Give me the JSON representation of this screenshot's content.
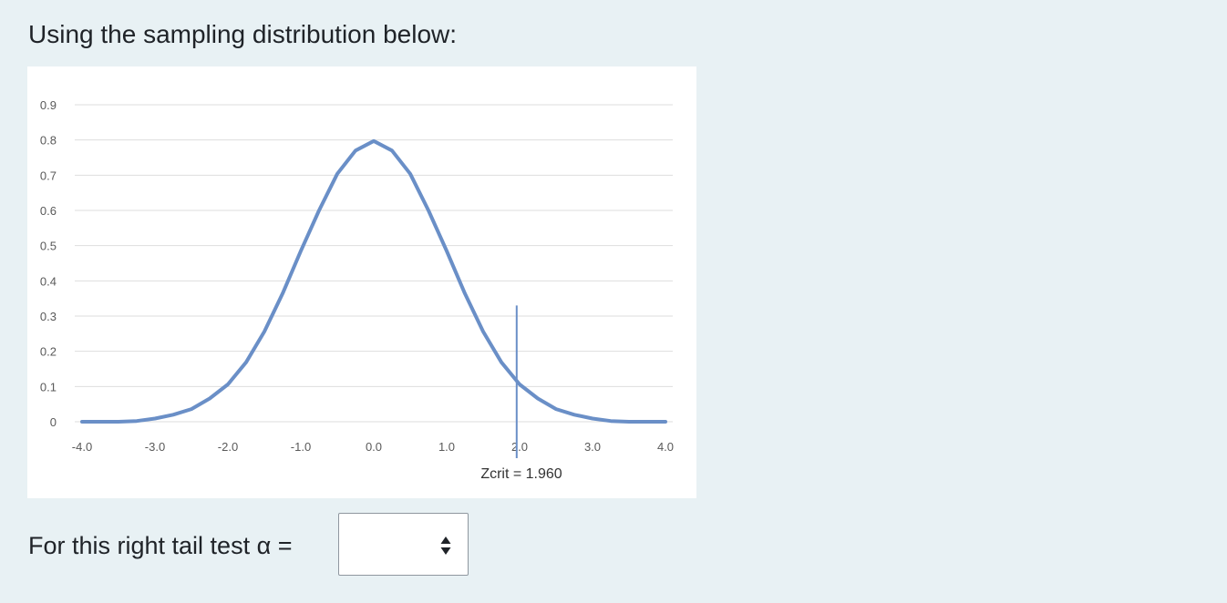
{
  "question": {
    "intro": "Using the sampling distribution below:",
    "prompt": "For this right tail test α ="
  },
  "answer_select": {
    "selected_value": "",
    "icon": "select-arrows-icon"
  },
  "colors": {
    "page_background": "#e8f1f4",
    "curve": "#6a8fc7",
    "critical_line": "#6a8fc7",
    "gridline": "#dedede",
    "tick_label": "#595959"
  },
  "chart_data": {
    "type": "line",
    "title": "",
    "xlabel": "",
    "ylabel": "",
    "xlim": [
      -4.0,
      4.0
    ],
    "ylim": [
      0,
      0.9
    ],
    "grid": true,
    "x_tick_labels": [
      "-4.0",
      "-3.0",
      "-2.0",
      "-1.0",
      "0.0",
      "1.0",
      "2.0",
      "3.0",
      "4.0"
    ],
    "y_tick_labels": [
      "0",
      "0.1",
      "0.2",
      "0.3",
      "0.4",
      "0.5",
      "0.6",
      "0.7",
      "0.8",
      "0.9"
    ],
    "x_ticks": [
      -4,
      -3,
      -2,
      -1,
      0,
      1,
      2,
      3,
      4
    ],
    "y_ticks": [
      0,
      0.1,
      0.2,
      0.3,
      0.4,
      0.5,
      0.6,
      0.7,
      0.8,
      0.9
    ],
    "series": [
      {
        "x": [
          -4.0,
          -3.75,
          -3.5,
          -3.25,
          -3.0,
          -2.75,
          -2.5,
          -2.25,
          -2.0,
          -1.75,
          -1.5,
          -1.25,
          -1.0,
          -0.75,
          -0.5,
          -0.25,
          0.0,
          0.25,
          0.5,
          0.75,
          1.0,
          1.25,
          1.5,
          1.75,
          2.0,
          2.25,
          2.5,
          2.75,
          3.0,
          3.25,
          3.5,
          3.75,
          4.0
        ],
        "y": [
          0.0,
          0.0,
          0.0,
          0.002,
          0.009,
          0.02,
          0.036,
          0.066,
          0.106,
          0.169,
          0.256,
          0.364,
          0.485,
          0.6,
          0.704,
          0.77,
          0.797,
          0.77,
          0.704,
          0.6,
          0.485,
          0.364,
          0.256,
          0.169,
          0.106,
          0.066,
          0.036,
          0.02,
          0.009,
          0.002,
          0.0,
          0.0,
          0.0
        ]
      }
    ],
    "critical_value": {
      "x": 1.96,
      "top_y": 0.33,
      "label": "Zcrit = 1.960"
    }
  }
}
